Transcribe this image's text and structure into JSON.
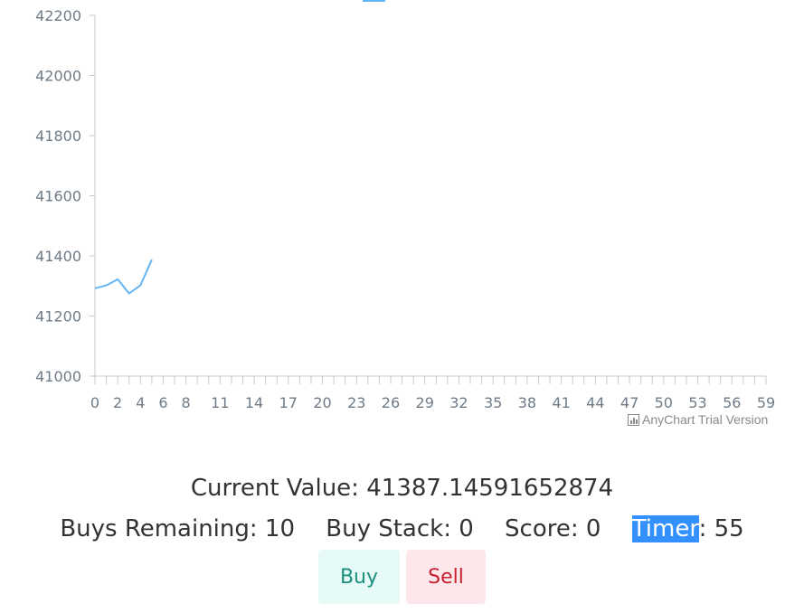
{
  "chart_data": {
    "type": "line",
    "title": "",
    "xlabel": "",
    "ylabel": "",
    "ylim": [
      41000,
      42200
    ],
    "yticks": [
      41000,
      41200,
      41400,
      41600,
      41800,
      42000,
      42200
    ],
    "xlim": [
      0,
      59
    ],
    "xtick_labels": [
      0,
      2,
      4,
      6,
      8,
      11,
      14,
      17,
      20,
      23,
      26,
      29,
      32,
      35,
      38,
      41,
      44,
      47,
      50,
      53,
      56,
      59
    ],
    "grid": false,
    "series": [
      {
        "x": [
          0,
          1,
          2,
          3,
          4,
          5
        ],
        "values": [
          41292,
          41302,
          41322,
          41275,
          41302,
          41387.14591652874
        ]
      }
    ],
    "colors": {
      "line": "#64b5f6",
      "axis": "#c8c8c8",
      "tick_text": "#6e7b87"
    }
  },
  "watermark": {
    "text": "AnyChart Trial Version",
    "icon": "bar-chart-icon"
  },
  "info": {
    "current_value_label": "Current Value: 41387.14591652874",
    "buys_remaining": "Buys Remaining: 10",
    "buy_stack": "Buy Stack: 0",
    "score": "Score: 0",
    "timer_label": "Timer",
    "timer_value": ": 55"
  },
  "buttons": {
    "buy_label": "Buy",
    "sell_label": "Sell"
  }
}
